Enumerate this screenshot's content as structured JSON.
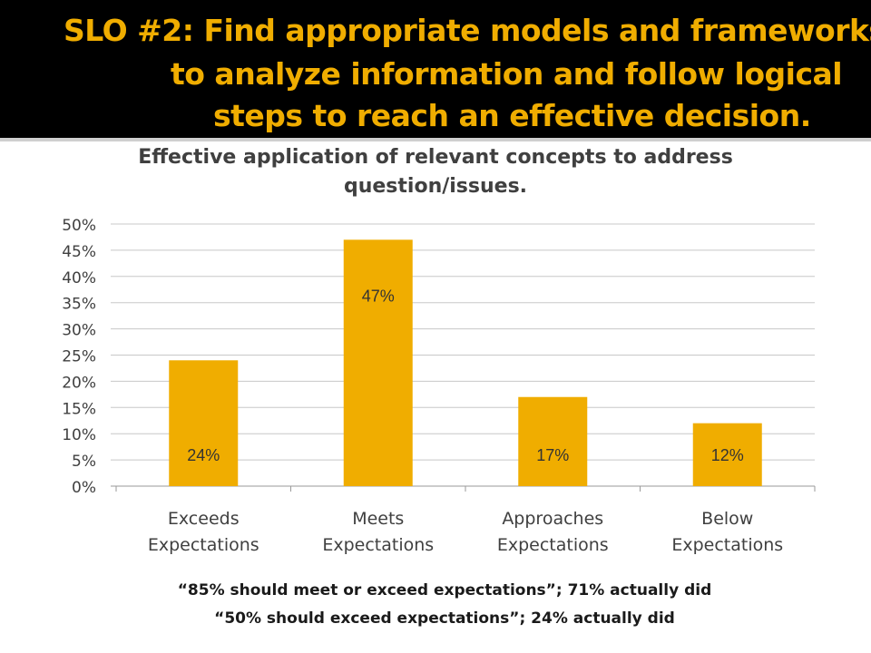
{
  "header": {
    "title_line1": "SLO #2: Find appropriate models and frameworks",
    "title_line2": "to analyze information and follow logical",
    "title_line3": "steps to reach an effective decision."
  },
  "colors": {
    "header_bg": "#000000",
    "title": "#f0ad00",
    "bar": "#f0ad00"
  },
  "chart_data": {
    "type": "bar",
    "title_line1": "Effective application of relevant concepts to address",
    "title_line2": "question/issues.",
    "categories": [
      [
        "Exceeds",
        "Expectations"
      ],
      [
        "Meets",
        "Expectations"
      ],
      [
        "Approaches",
        "Expectations"
      ],
      [
        "Below",
        "Expectations"
      ]
    ],
    "values": [
      24,
      47,
      17,
      12
    ],
    "data_labels": [
      "24%",
      "47%",
      "17%",
      "12%"
    ],
    "y_ticks": [
      "0%",
      "5%",
      "10%",
      "15%",
      "20%",
      "25%",
      "30%",
      "35%",
      "40%",
      "45%",
      "50%"
    ],
    "ylim": [
      0,
      50
    ],
    "grid": true,
    "legend": "none"
  },
  "footnotes": {
    "line1": "“85% should meet or exceed expectations”; 71% actually did",
    "line2": "“50% should exceed expectations”; 24% actually did"
  }
}
